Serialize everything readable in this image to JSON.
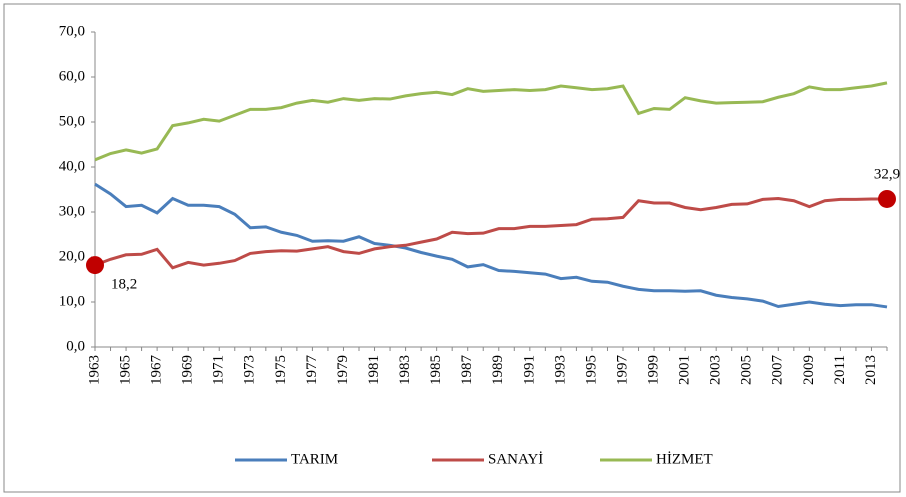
{
  "chart_data": {
    "type": "line",
    "categories": [
      "1963",
      null,
      "1965",
      null,
      "1967",
      null,
      "1969",
      null,
      "1971",
      null,
      "1973",
      null,
      "1975",
      null,
      "1977",
      null,
      "1979",
      null,
      "1981",
      null,
      "1983",
      null,
      "1985",
      null,
      "1987",
      null,
      "1989",
      null,
      "1991",
      null,
      "1993",
      null,
      "1995",
      null,
      "1997",
      null,
      "1999",
      null,
      "2001",
      null,
      "2003",
      null,
      "2005",
      null,
      "2007",
      null,
      "2009",
      null,
      "2011",
      null,
      "2013",
      null
    ],
    "series": [
      {
        "name": "TARIM",
        "color": "#4a7ebb",
        "values": [
          36.2,
          34,
          31.2,
          31.5,
          29.8,
          33,
          31.5,
          31.5,
          31.2,
          29.5,
          26.5,
          26.7,
          25.5,
          24.8,
          23.5,
          23.6,
          23.5,
          24.5,
          23,
          22.6,
          22,
          21,
          20.2,
          19.5,
          17.8,
          18.3,
          17,
          16.8,
          16.5,
          16.2,
          15.2,
          15.5,
          14.6,
          14.4,
          13.5,
          12.8,
          12.5,
          12.5,
          12.4,
          12.5,
          11.5,
          11,
          10.7,
          10.2,
          9,
          9.5,
          10,
          9.5,
          9.2,
          9.4,
          9.4,
          8.9
        ]
      },
      {
        "name": "SANAYİ",
        "color": "#be4b48",
        "values": [
          18.2,
          19.5,
          20.5,
          20.6,
          21.7,
          17.6,
          18.8,
          18.2,
          18.6,
          19.2,
          20.8,
          21.2,
          21.4,
          21.3,
          21.8,
          22.3,
          21.2,
          20.8,
          21.8,
          22.3,
          22.6,
          23.3,
          24,
          25.5,
          25.2,
          25.3,
          26.3,
          26.3,
          26.8,
          26.8,
          27,
          27.2,
          28.4,
          28.5,
          28.8,
          32.5,
          32,
          32,
          31,
          30.5,
          31,
          31.7,
          31.8,
          32.8,
          33,
          32.5,
          31.2,
          32.5,
          32.8,
          32.8,
          32.9,
          32.9
        ],
        "value_labels": [
          "18,2",
          null,
          null,
          null,
          null,
          null,
          null,
          null,
          null,
          null,
          null,
          null,
          null,
          null,
          null,
          null,
          null,
          null,
          null,
          null,
          null,
          null,
          null,
          null,
          null,
          null,
          null,
          null,
          null,
          null,
          null,
          null,
          null,
          null,
          null,
          null,
          null,
          null,
          null,
          null,
          null,
          null,
          null,
          null,
          null,
          null,
          null,
          null,
          null,
          null,
          null,
          "32,9"
        ],
        "marker_color": "#c00000"
      },
      {
        "name": "HİZMET",
        "color": "#98b954",
        "values": [
          41.6,
          43,
          43.8,
          43.1,
          44,
          49.2,
          49.8,
          50.6,
          50.2,
          51.5,
          52.8,
          52.8,
          53.2,
          54.2,
          54.8,
          54.4,
          55.2,
          54.8,
          55.2,
          55.1,
          55.8,
          56.3,
          56.6,
          56.1,
          57.4,
          56.8,
          57,
          57.2,
          57,
          57.2,
          58,
          57.6,
          57.2,
          57.4,
          58,
          51.9,
          53,
          52.8,
          55.4,
          54.7,
          54.2,
          54.3,
          54.4,
          54.5,
          55.5,
          56.3,
          57.8,
          57.2,
          57.2,
          57.6,
          58,
          58.7
        ]
      }
    ],
    "ylim": [
      0,
      70
    ],
    "yticks": [
      {
        "value": 0,
        "label": "0,0"
      },
      {
        "value": 10,
        "label": "10,0"
      },
      {
        "value": 20,
        "label": "20,0"
      },
      {
        "value": 30,
        "label": "30,0"
      },
      {
        "value": 40,
        "label": "40,0"
      },
      {
        "value": 50,
        "label": "50,0"
      },
      {
        "value": 60,
        "label": "60,0"
      },
      {
        "value": 70,
        "label": "70,0"
      }
    ],
    "grid": false,
    "legend": "bottom"
  }
}
